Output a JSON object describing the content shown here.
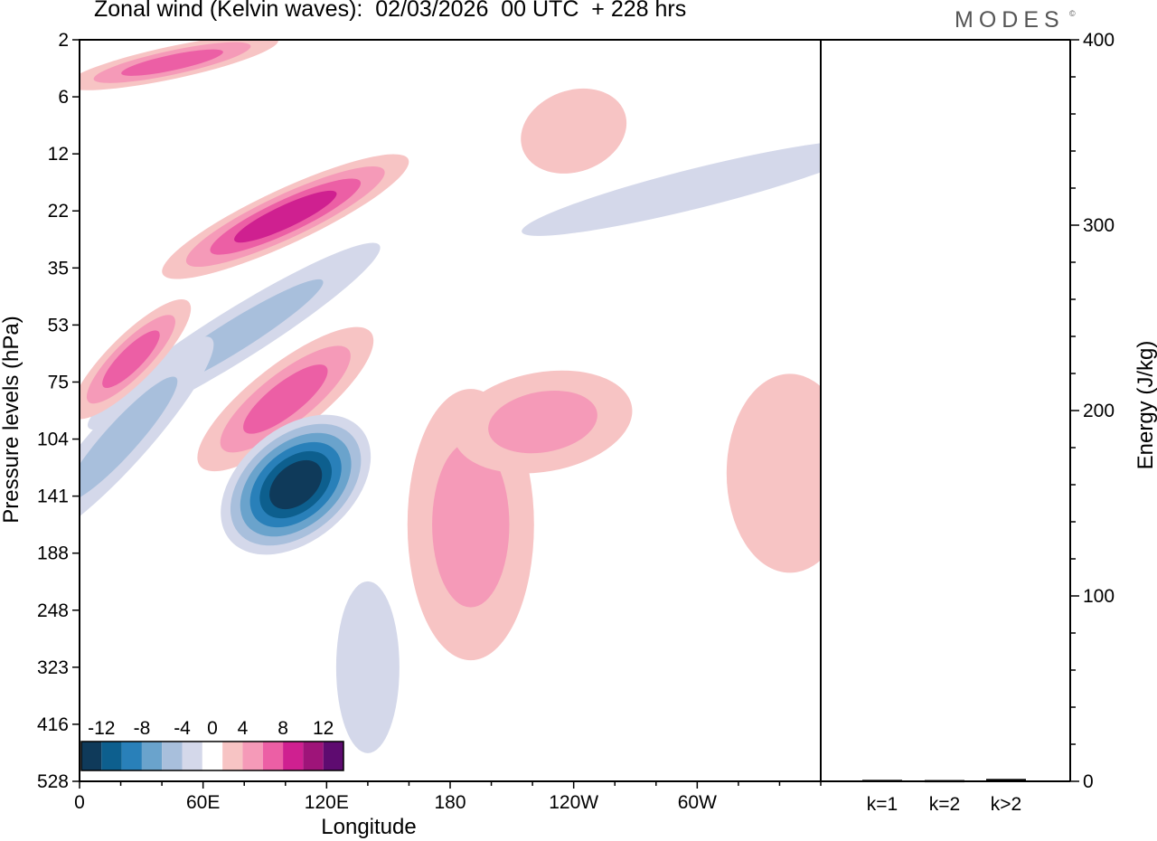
{
  "header": {
    "title": "Zonal wind (Kelvin waves):  02/03/2026  00 UTC  + 228 hrs",
    "brand": "MODES",
    "brand_mark": "©"
  },
  "chart_data": [
    {
      "type": "heatmap",
      "title": "Zonal wind (Kelvin waves):  02/03/2026  00 UTC  + 228 hrs",
      "xlabel": "Longitude",
      "ylabel": "Pressure levels (hPa)",
      "x_ticks": [
        "0",
        "60E",
        "120E",
        "180",
        "120W",
        "60W"
      ],
      "y_ticks": [
        "2",
        "6",
        "12",
        "22",
        "35",
        "53",
        "75",
        "104",
        "141",
        "188",
        "248",
        "323",
        "416",
        "528"
      ],
      "xlim": [
        0,
        360
      ],
      "colorbar": {
        "labels": [
          "-12",
          "-8",
          "-4",
          "0",
          "4",
          "8",
          "12"
        ],
        "levels": [
          -14,
          -12,
          -10,
          -8,
          -6,
          -4,
          -2,
          2,
          4,
          6,
          8,
          10,
          12,
          14
        ],
        "colors": [
          "#0f3a5a",
          "#0d5f8e",
          "#2980b9",
          "#6aa3cc",
          "#a8bfdc",
          "#d4d8ea",
          "#ffffff",
          "#f7c4c4",
          "#f59ab8",
          "#ec5fa5",
          "#cf2090",
          "#9e1479",
          "#5e0b70"
        ]
      },
      "features": [
        {
          "name": "upper-pos-band",
          "value": 8,
          "lon": 45,
          "level_index": 0.4
        },
        {
          "name": "strat-pos-band",
          "value": 10,
          "lon": 100,
          "level_index": 3.1
        },
        {
          "name": "strat-neg-band",
          "value": -6,
          "lon": 75,
          "level_index": 5.2
        },
        {
          "name": "lower-pos-band-a",
          "value": 8,
          "lon": 25,
          "level_index": 5.6
        },
        {
          "name": "lower-pos-band-b",
          "value": 8,
          "lon": 100,
          "level_index": 6.3
        },
        {
          "name": "lower-neg-band",
          "value": -6,
          "lon": 20,
          "level_index": 7.0
        },
        {
          "name": "deep-neg-core",
          "value": -14,
          "lon": 105,
          "level_index": 7.8
        },
        {
          "name": "trop-pos-region-a",
          "value": 6,
          "lon": 190,
          "level_index": 8.5
        },
        {
          "name": "trop-pos-region-b",
          "value": 6,
          "lon": 225,
          "level_index": 6.7
        },
        {
          "name": "trop-neg-column",
          "value": -4,
          "lon": 140,
          "level_index": 11.0
        },
        {
          "name": "east-pos-region",
          "value": 4,
          "lon": 345,
          "level_index": 7.6
        },
        {
          "name": "upper-neg-band-east",
          "value": -4,
          "lon": 300,
          "level_index": 2.6
        },
        {
          "name": "upper-pos-east",
          "value": 4,
          "lon": 240,
          "level_index": 1.6
        }
      ]
    },
    {
      "type": "bar",
      "title": "",
      "xlabel": "",
      "ylabel": "Energy (J/kg)",
      "categories": [
        "k=1",
        "k=2",
        "k>2"
      ],
      "values": [
        0.3,
        0.2,
        0.8
      ],
      "ylim": [
        0,
        400
      ],
      "y_ticks": [
        "0",
        "100",
        "200",
        "300",
        "400"
      ]
    }
  ]
}
